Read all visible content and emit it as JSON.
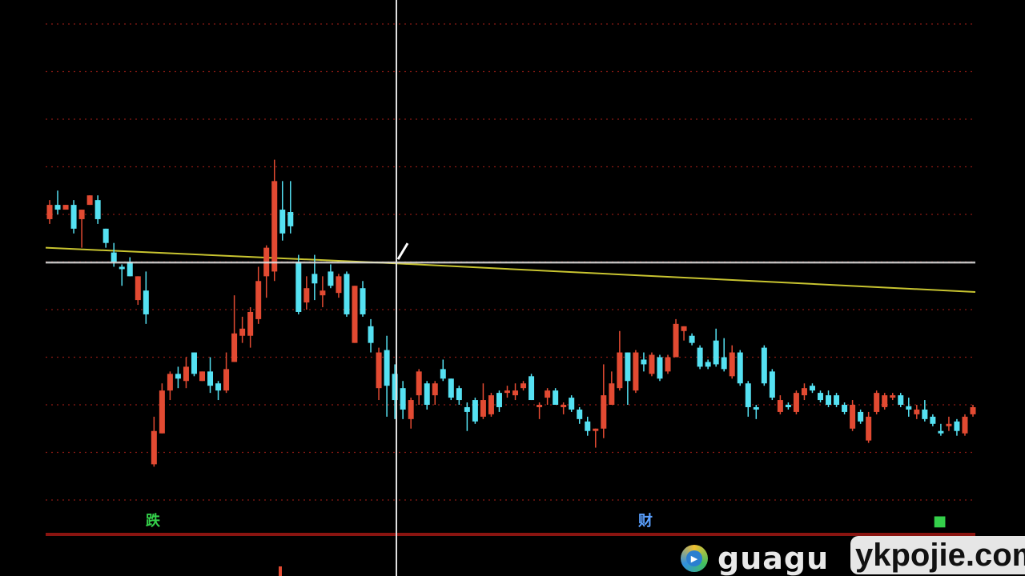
{
  "chart_data": {
    "type": "candlestick",
    "title": "",
    "xlabel": "",
    "ylabel": "",
    "ylim": [
      0,
      10
    ],
    "grid": true,
    "colors": {
      "up": "#e24a32",
      "down": "#55e1f2",
      "moving_average": "#c8c430",
      "grid": "#8a1a14",
      "crosshair": "#e0e0e0",
      "baseline": "#8a1410"
    },
    "candles_ohlc": [
      [
        5.9,
        6.3,
        5.8,
        6.2
      ],
      [
        6.2,
        6.5,
        6.0,
        6.1
      ],
      [
        6.1,
        6.2,
        6.1,
        6.2
      ],
      [
        6.2,
        6.3,
        5.6,
        5.7
      ],
      [
        5.9,
        6.1,
        5.3,
        6.1
      ],
      [
        6.2,
        6.4,
        6.2,
        6.4
      ],
      [
        6.3,
        6.4,
        5.8,
        5.9
      ],
      [
        5.7,
        5.7,
        5.3,
        5.4
      ],
      [
        5.2,
        5.4,
        4.9,
        5.0
      ],
      [
        4.9,
        4.95,
        4.5,
        4.85
      ],
      [
        5.0,
        5.1,
        4.7,
        4.7
      ],
      [
        4.2,
        4.7,
        4.1,
        4.7
      ],
      [
        4.4,
        4.8,
        3.7,
        3.9
      ],
      [
        0.75,
        1.75,
        0.7,
        1.45
      ],
      [
        1.4,
        2.45,
        1.4,
        2.3
      ],
      [
        2.3,
        2.7,
        2.1,
        2.65
      ],
      [
        2.65,
        2.8,
        2.35,
        2.55
      ],
      [
        2.5,
        3.0,
        2.35,
        2.8
      ],
      [
        3.1,
        3.1,
        2.6,
        2.65
      ],
      [
        2.5,
        2.7,
        2.5,
        2.7
      ],
      [
        2.7,
        3.0,
        2.25,
        2.4
      ],
      [
        2.45,
        2.5,
        2.1,
        2.3
      ],
      [
        2.3,
        3.1,
        2.25,
        2.75
      ],
      [
        2.9,
        4.3,
        2.9,
        3.5
      ],
      [
        3.45,
        3.85,
        3.3,
        3.6
      ],
      [
        3.45,
        4.05,
        3.2,
        3.95
      ],
      [
        3.8,
        4.9,
        3.7,
        4.6
      ],
      [
        4.7,
        5.35,
        4.25,
        5.3
      ],
      [
        4.8,
        7.15,
        4.6,
        6.7
      ],
      [
        6.1,
        6.7,
        5.45,
        5.6
      ],
      [
        6.05,
        6.7,
        5.6,
        5.75
      ],
      [
        5.0,
        5.15,
        3.9,
        3.95
      ],
      [
        4.15,
        4.7,
        4.0,
        4.45
      ],
      [
        4.75,
        5.15,
        4.2,
        4.55
      ],
      [
        4.3,
        4.7,
        4.05,
        4.4
      ],
      [
        4.8,
        4.95,
        4.45,
        4.5
      ],
      [
        4.35,
        4.75,
        4.25,
        4.7
      ],
      [
        4.75,
        4.8,
        3.85,
        3.9
      ],
      [
        3.3,
        4.5,
        3.3,
        4.5
      ],
      [
        4.45,
        4.6,
        3.85,
        3.9
      ],
      [
        3.65,
        3.8,
        3.1,
        3.3
      ],
      [
        2.35,
        3.2,
        2.1,
        3.1
      ],
      [
        3.15,
        3.45,
        1.75,
        2.4
      ],
      [
        2.65,
        2.85,
        1.7,
        2.1
      ],
      [
        2.35,
        2.5,
        1.7,
        1.9
      ],
      [
        1.7,
        2.15,
        1.5,
        2.1
      ],
      [
        2.2,
        2.75,
        2.0,
        2.7
      ],
      [
        2.45,
        2.5,
        1.9,
        2.0
      ],
      [
        2.2,
        2.5,
        2.0,
        2.45
      ],
      [
        2.75,
        2.95,
        2.5,
        2.55
      ],
      [
        2.55,
        2.55,
        2.1,
        2.15
      ],
      [
        2.35,
        2.4,
        2.0,
        2.1
      ],
      [
        1.95,
        2.05,
        1.45,
        1.85
      ],
      [
        2.1,
        2.15,
        1.6,
        1.65
      ],
      [
        1.75,
        2.45,
        1.7,
        2.1
      ],
      [
        1.8,
        2.25,
        1.75,
        2.2
      ],
      [
        2.25,
        2.3,
        1.85,
        1.95
      ],
      [
        2.25,
        2.4,
        2.15,
        2.3
      ],
      [
        2.2,
        2.45,
        2.1,
        2.3
      ],
      [
        2.35,
        2.5,
        2.3,
        2.45
      ],
      [
        2.6,
        2.65,
        2.1,
        2.1
      ],
      [
        1.95,
        2.05,
        1.7,
        2.0
      ],
      [
        2.15,
        2.35,
        2.0,
        2.3
      ],
      [
        2.3,
        2.35,
        2.0,
        2.0
      ],
      [
        1.95,
        2.05,
        1.8,
        2.0
      ],
      [
        2.15,
        2.2,
        1.85,
        1.9
      ],
      [
        1.9,
        1.95,
        1.6,
        1.7
      ],
      [
        1.65,
        1.75,
        1.35,
        1.45
      ],
      [
        1.45,
        1.5,
        1.1,
        1.5
      ],
      [
        1.5,
        2.85,
        1.3,
        2.2
      ],
      [
        2.0,
        2.7,
        2.0,
        2.45
      ],
      [
        2.35,
        3.55,
        2.3,
        3.1
      ],
      [
        3.1,
        3.1,
        2.0,
        2.5
      ],
      [
        2.3,
        3.15,
        2.25,
        3.1
      ],
      [
        2.95,
        3.1,
        2.7,
        2.85
      ],
      [
        2.65,
        3.1,
        2.6,
        3.05
      ],
      [
        3.0,
        3.05,
        2.5,
        2.55
      ],
      [
        2.7,
        3.05,
        2.65,
        3.0
      ],
      [
        3.0,
        3.8,
        3.0,
        3.7
      ],
      [
        3.55,
        3.65,
        3.35,
        3.65
      ],
      [
        3.45,
        3.5,
        3.25,
        3.3
      ],
      [
        3.2,
        3.25,
        2.75,
        2.8
      ],
      [
        2.9,
        2.95,
        2.75,
        2.8
      ],
      [
        3.35,
        3.6,
        2.8,
        2.85
      ],
      [
        3.0,
        3.4,
        2.7,
        2.75
      ],
      [
        2.6,
        3.25,
        2.55,
        3.1
      ],
      [
        3.1,
        3.15,
        2.4,
        2.45
      ],
      [
        2.45,
        2.5,
        1.75,
        1.95
      ],
      [
        1.95,
        2.0,
        1.7,
        1.9
      ],
      [
        3.2,
        3.25,
        2.4,
        2.45
      ],
      [
        2.7,
        2.75,
        2.1,
        2.15
      ],
      [
        1.85,
        2.2,
        1.8,
        2.1
      ],
      [
        2.0,
        2.05,
        1.9,
        1.95
      ],
      [
        1.85,
        2.3,
        1.8,
        2.25
      ],
      [
        2.2,
        2.45,
        2.1,
        2.35
      ],
      [
        2.4,
        2.45,
        2.25,
        2.3
      ],
      [
        2.25,
        2.3,
        2.05,
        2.1
      ],
      [
        2.2,
        2.3,
        1.95,
        2.0
      ],
      [
        2.2,
        2.25,
        1.95,
        2.0
      ],
      [
        2.0,
        2.05,
        1.8,
        1.85
      ],
      [
        1.5,
        2.1,
        1.45,
        2.0
      ],
      [
        1.85,
        1.9,
        1.6,
        1.65
      ],
      [
        1.25,
        1.85,
        1.2,
        1.75
      ],
      [
        1.85,
        2.3,
        1.8,
        2.25
      ],
      [
        1.95,
        2.25,
        1.9,
        2.2
      ],
      [
        2.15,
        2.25,
        2.1,
        2.2
      ],
      [
        2.2,
        2.25,
        1.95,
        2.0
      ],
      [
        1.97,
        2.15,
        1.75,
        1.9
      ],
      [
        1.8,
        2.0,
        1.7,
        1.9
      ],
      [
        1.9,
        2.1,
        1.65,
        1.7
      ],
      [
        1.75,
        1.8,
        1.55,
        1.6
      ],
      [
        1.45,
        1.6,
        1.35,
        1.4
      ],
      [
        1.55,
        1.75,
        1.45,
        1.6
      ],
      [
        1.65,
        1.7,
        1.35,
        1.45
      ],
      [
        1.4,
        1.8,
        1.35,
        1.75
      ],
      [
        1.8,
        2.0,
        1.75,
        1.95
      ]
    ],
    "moving_average": {
      "start": 5.3,
      "at_crosshair": 4.97,
      "end": 4.37
    },
    "crosshair_level": 4.99,
    "signal_markers": [
      {
        "label": "跌",
        "color": "#34d04a"
      },
      {
        "label": "财",
        "color": "#5aa0ff"
      },
      {
        "label": "",
        "color": "#34d04a"
      }
    ]
  },
  "branding": {
    "logo_text": "guagu",
    "watermark": "ykpojie.com"
  }
}
